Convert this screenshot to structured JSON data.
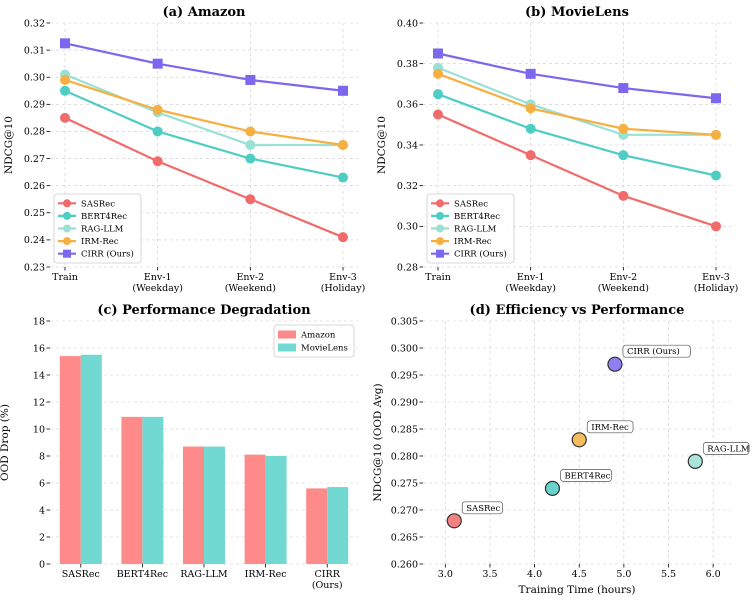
{
  "colors": {
    "SASRec": "#f26b6b",
    "BERT4Rec": "#4ecdc4",
    "RAG-LLM": "#9be0d5",
    "IRM-Rec": "#f5b041",
    "CIRR (Ours)": "#7b68ee",
    "Amazon": "#ff8a8a",
    "MovieLens": "#72d9d2"
  },
  "chart_data": [
    {
      "type": "line",
      "title": "(a) Amazon",
      "xlabel": "",
      "ylabel": "NDCG@10",
      "categories": [
        "Train",
        "Env-1\n(Weekday)",
        "Env-2\n(Weekend)",
        "Env-3\n(Holiday)"
      ],
      "ylim": [
        0.23,
        0.32
      ],
      "yticks": [
        "0.23",
        "0.24",
        "0.25",
        "0.26",
        "0.27",
        "0.28",
        "0.29",
        "0.30",
        "0.31",
        "0.32"
      ],
      "legend": "lower-left",
      "series": [
        {
          "name": "SASRec",
          "marker": "circle",
          "values": [
            0.285,
            0.269,
            0.255,
            0.241
          ]
        },
        {
          "name": "BERT4Rec",
          "marker": "circle",
          "values": [
            0.295,
            0.28,
            0.27,
            0.263
          ]
        },
        {
          "name": "RAG-LLM",
          "marker": "circle",
          "values": [
            0.301,
            0.287,
            0.275,
            0.275
          ]
        },
        {
          "name": "IRM-Rec",
          "marker": "circle",
          "values": [
            0.299,
            0.288,
            0.28,
            0.275
          ]
        },
        {
          "name": "CIRR (Ours)",
          "marker": "square",
          "values": [
            0.3125,
            0.305,
            0.299,
            0.295
          ]
        }
      ]
    },
    {
      "type": "line",
      "title": "(b) MovieLens",
      "xlabel": "",
      "ylabel": "NDCG@10",
      "categories": [
        "Train",
        "Env-1\n(Weekday)",
        "Env-2\n(Weekend)",
        "Env-3\n(Holiday)"
      ],
      "ylim": [
        0.28,
        0.4
      ],
      "yticks": [
        "0.28",
        "0.30",
        "0.32",
        "0.34",
        "0.36",
        "0.38",
        "0.40"
      ],
      "legend": "lower-left",
      "series": [
        {
          "name": "SASRec",
          "marker": "circle",
          "values": [
            0.355,
            0.335,
            0.315,
            0.3
          ]
        },
        {
          "name": "BERT4Rec",
          "marker": "circle",
          "values": [
            0.365,
            0.348,
            0.335,
            0.325
          ]
        },
        {
          "name": "RAG-LLM",
          "marker": "circle",
          "values": [
            0.378,
            0.36,
            0.345,
            0.345
          ]
        },
        {
          "name": "IRM-Rec",
          "marker": "circle",
          "values": [
            0.375,
            0.358,
            0.348,
            0.345
          ]
        },
        {
          "name": "CIRR (Ours)",
          "marker": "square",
          "values": [
            0.385,
            0.375,
            0.368,
            0.363
          ]
        }
      ]
    },
    {
      "type": "bar",
      "title": "(c) Performance Degradation",
      "xlabel": "",
      "ylabel": "OOD Drop (%)",
      "categories": [
        "SASRec",
        "BERT4Rec",
        "RAG-LLM",
        "IRM-Rec",
        "CIRR\n(Ours)"
      ],
      "ylim": [
        0,
        18
      ],
      "yticks": [
        "0",
        "2",
        "4",
        "6",
        "8",
        "10",
        "12",
        "14",
        "16",
        "18"
      ],
      "legend": "top-right",
      "series": [
        {
          "name": "Amazon",
          "values": [
            15.4,
            10.9,
            8.7,
            8.1,
            5.6
          ]
        },
        {
          "name": "MovieLens",
          "values": [
            15.5,
            10.9,
            8.7,
            8.0,
            5.7
          ]
        }
      ]
    },
    {
      "type": "scatter",
      "title": "(d) Efficiency vs Performance",
      "xlabel": "Training Time (hours)",
      "ylabel": "NDCG@10 (OOD Avg)",
      "xlim": [
        2.75,
        6.2
      ],
      "ylim": [
        0.26,
        0.305
      ],
      "xticks": [
        "3.0",
        "3.5",
        "4.0",
        "4.5",
        "5.0",
        "5.5",
        "6.0"
      ],
      "yticks": [
        "0.260",
        "0.265",
        "0.270",
        "0.275",
        "0.280",
        "0.285",
        "0.290",
        "0.295",
        "0.300",
        "0.305"
      ],
      "points": [
        {
          "name": "SASRec",
          "x": 3.1,
          "y": 0.268
        },
        {
          "name": "BERT4Rec",
          "x": 4.2,
          "y": 0.274
        },
        {
          "name": "RAG-LLM",
          "x": 5.8,
          "y": 0.279
        },
        {
          "name": "IRM-Rec",
          "x": 4.5,
          "y": 0.283
        },
        {
          "name": "CIRR (Ours)",
          "x": 4.9,
          "y": 0.297
        }
      ]
    }
  ]
}
